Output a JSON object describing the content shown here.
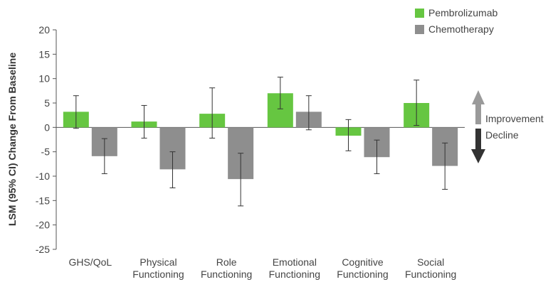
{
  "chart_data": {
    "type": "bar",
    "ylabel": "LSM (95% CI) Change From Baseline",
    "xlabel": "",
    "ylim": [
      -25,
      20
    ],
    "yticks": [
      20,
      15,
      10,
      5,
      0,
      -5,
      -10,
      -15,
      -20,
      -25
    ],
    "categories": [
      [
        "GHS/QoL"
      ],
      [
        "Physical",
        "Functioning"
      ],
      [
        "Role",
        "Functioning"
      ],
      [
        "Emotional",
        "Functioning"
      ],
      [
        "Cognitive",
        "Functioning"
      ],
      [
        "Social",
        "Functioning"
      ]
    ],
    "series": [
      {
        "name": "Pembrolizumab",
        "color": "#66c641",
        "values": [
          3.2,
          1.2,
          2.8,
          7.0,
          -1.7,
          5.0
        ],
        "ci_low": [
          -0.2,
          -2.2,
          -2.2,
          3.8,
          -4.8,
          0.4
        ],
        "ci_high": [
          6.5,
          4.5,
          8.1,
          10.3,
          1.6,
          9.7
        ]
      },
      {
        "name": "Chemotherapy",
        "color": "#8e8e8e",
        "values": [
          -5.9,
          -8.6,
          -10.6,
          3.2,
          -6.1,
          -7.9
        ],
        "ci_low": [
          -9.5,
          -12.4,
          -16.1,
          -0.5,
          -9.5,
          -12.7
        ],
        "ci_high": [
          -2.3,
          -5.0,
          -5.3,
          6.5,
          -2.6,
          -3.2
        ]
      }
    ],
    "legend": {
      "position": "top-right"
    },
    "annotations": {
      "improvement_label": "Improvement",
      "decline_label": "Decline",
      "improvement_arrow_color": "#9a9a9a",
      "decline_arrow_color": "#333333"
    }
  }
}
